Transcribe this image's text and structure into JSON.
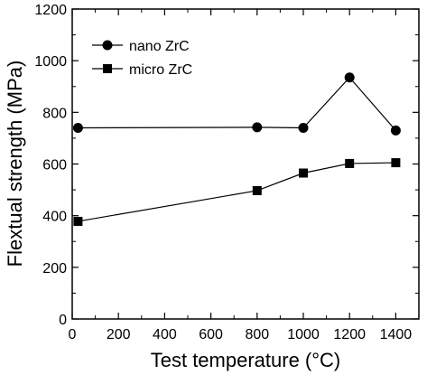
{
  "chart_data": {
    "type": "line",
    "xlabel": "Test temperature (°C)",
    "ylabel": "Flextual strength (MPa)",
    "xlim": [
      0,
      1500
    ],
    "ylim": [
      0,
      1200
    ],
    "xticks": [
      0,
      200,
      400,
      600,
      800,
      1000,
      1200,
      1400
    ],
    "yticks": [
      0,
      200,
      400,
      600,
      800,
      1000,
      1200
    ],
    "grid": false,
    "legend_position": "top-left",
    "series": [
      {
        "name": "nano ZrC",
        "marker": "circle",
        "x": [
          25,
          800,
          1000,
          1200,
          1400
        ],
        "y": [
          740,
          742,
          740,
          935,
          730
        ]
      },
      {
        "name": "micro ZrC",
        "marker": "square",
        "x": [
          25,
          800,
          1000,
          1200,
          1400
        ],
        "y": [
          378,
          497,
          565,
          602,
          605
        ]
      }
    ]
  }
}
